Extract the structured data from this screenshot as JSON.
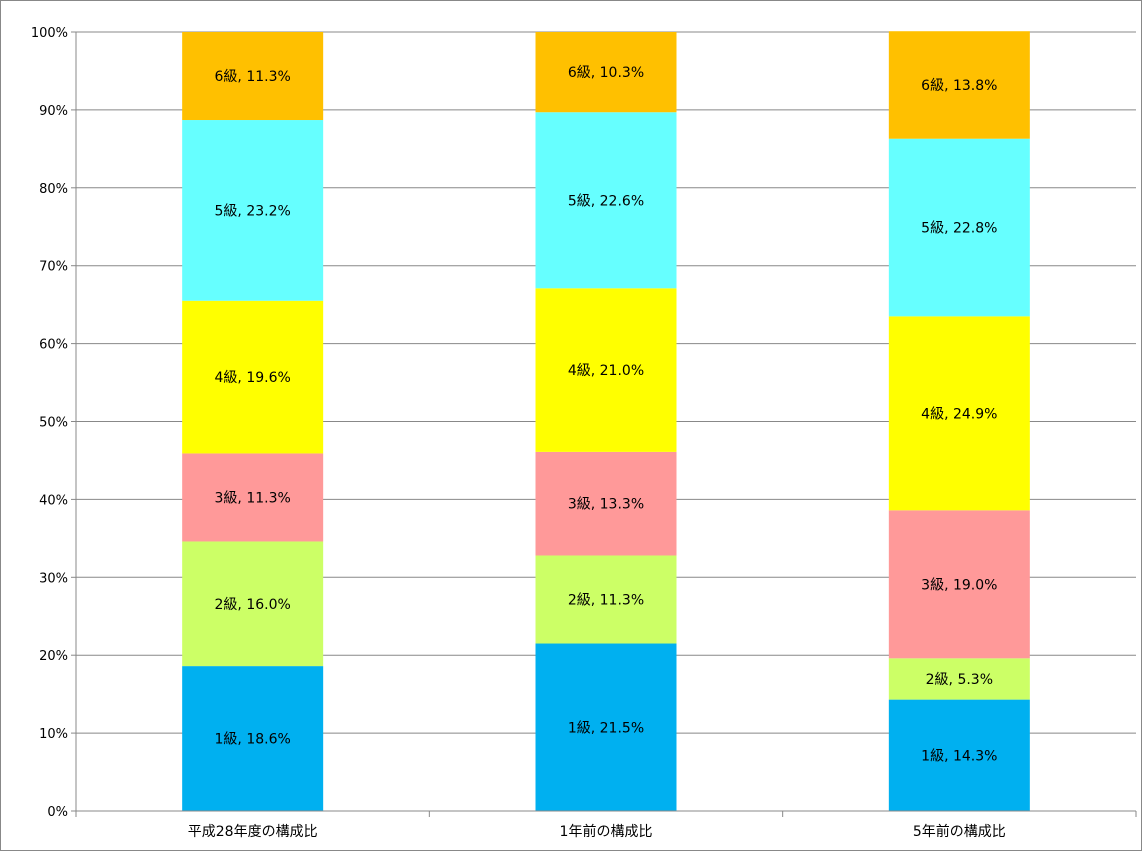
{
  "chart_data": {
    "type": "bar",
    "stacked": true,
    "categories": [
      "平成28年度の構成比",
      "1年前の構成比",
      "5年前の構成比"
    ],
    "series": [
      {
        "name": "1級",
        "color": "#00b0f0",
        "values": [
          18.6,
          21.5,
          14.3
        ],
        "labels": [
          "1級, 18.6%",
          "1級, 21.5%",
          "1級, 14.3%"
        ]
      },
      {
        "name": "2級",
        "color": "#ccff66",
        "values": [
          16.0,
          11.3,
          5.3
        ],
        "labels": [
          "2級, 16.0%",
          "2級, 11.3%",
          "2級, 5.3%"
        ]
      },
      {
        "name": "3級",
        "color": "#ff9999",
        "values": [
          11.3,
          13.3,
          19.0
        ],
        "labels": [
          "3級, 11.3%",
          "3級, 13.3%",
          "3級, 19.0%"
        ]
      },
      {
        "name": "4級",
        "color": "#ffff00",
        "values": [
          19.6,
          21.0,
          24.9
        ],
        "labels": [
          "4級, 19.6%",
          "4級, 21.0%",
          "4級, 24.9%"
        ]
      },
      {
        "name": "5級",
        "color": "#66ffff",
        "values": [
          23.2,
          22.6,
          22.8
        ],
        "labels": [
          "5級, 23.2%",
          "5級, 22.6%",
          "5級, 22.8%"
        ]
      },
      {
        "name": "6級",
        "color": "#ffc000",
        "values": [
          11.3,
          10.3,
          13.8
        ],
        "labels": [
          "6級, 11.3%",
          "6級, 10.3%",
          "6級, 13.8%"
        ]
      }
    ],
    "y_ticks": [
      "0%",
      "10%",
      "20%",
      "30%",
      "40%",
      "50%",
      "60%",
      "70%",
      "80%",
      "90%",
      "100%"
    ],
    "ylim": [
      0,
      100
    ],
    "grid": true,
    "legend": "none",
    "gridline_color": "#888888"
  }
}
